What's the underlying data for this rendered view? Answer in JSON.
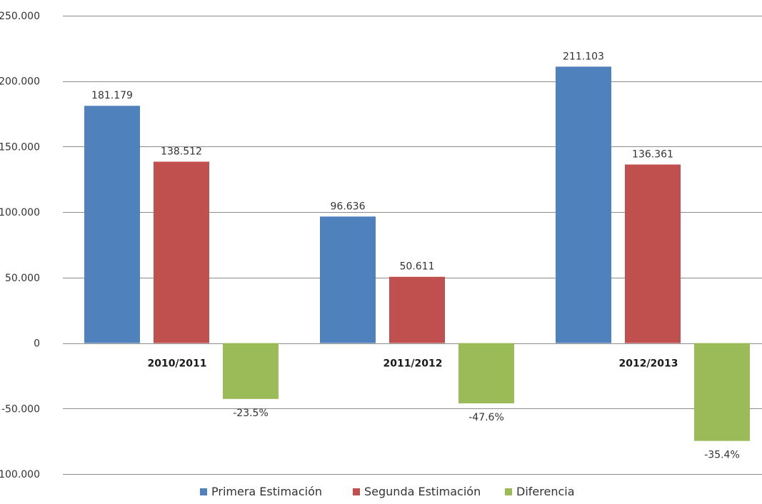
{
  "chart_data": {
    "type": "bar",
    "categories": [
      "2010/2011",
      "2011/2012",
      "2012/2013"
    ],
    "series": [
      {
        "name": "Primera Estimación",
        "color": "#4F81BD",
        "values": [
          181179,
          96636,
          211103
        ],
        "labels": [
          "181.179",
          "96.636",
          "211.103"
        ]
      },
      {
        "name": "Segunda Estimación",
        "color": "#C0504D",
        "values": [
          138512,
          50611,
          136361
        ],
        "labels": [
          "138.512",
          "50.611",
          "136.361"
        ]
      },
      {
        "name": "Diferencia",
        "color": "#9BBB59",
        "values": [
          -42667,
          -46025,
          -74742
        ],
        "labels": [
          "-23.5%",
          "-47.6%",
          "-35.4%"
        ]
      }
    ],
    "ylim": [
      -100000,
      250000
    ],
    "yticks": [
      250000,
      200000,
      150000,
      100000,
      50000,
      0,
      -50000,
      -100000
    ],
    "ytick_labels": [
      "250.000",
      "200.000",
      "150.000",
      "100.000",
      "50.000",
      "0",
      "-50.000",
      "-100.000"
    ],
    "grid": true,
    "legend_position": "bottom",
    "title": "",
    "xlabel": "",
    "ylabel": ""
  }
}
